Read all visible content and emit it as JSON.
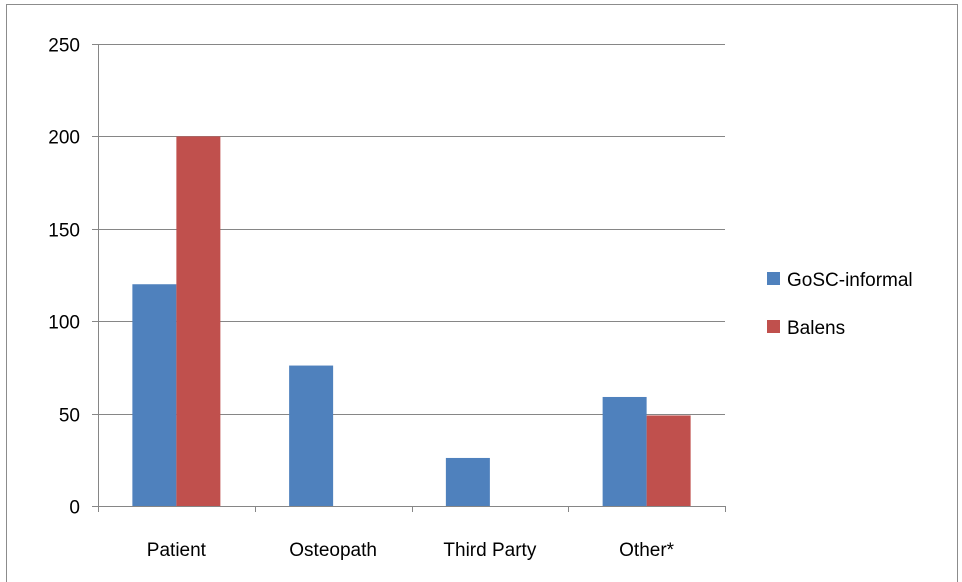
{
  "chart_data": {
    "type": "bar",
    "categories": [
      "Patient",
      "Osteopath",
      "Third Party",
      "Other*"
    ],
    "series": [
      {
        "name": "GoSC-informal",
        "values": [
          120,
          76,
          26,
          59
        ],
        "color": "#4f81bd"
      },
      {
        "name": "Balens",
        "values": [
          200,
          0,
          0,
          49
        ],
        "color": "#c0504d"
      }
    ],
    "ylim": [
      0,
      250
    ],
    "yticks": [
      0,
      50,
      100,
      150,
      200,
      250
    ],
    "grid": true,
    "legend": "right",
    "title": "",
    "xlabel": "",
    "ylabel": ""
  }
}
